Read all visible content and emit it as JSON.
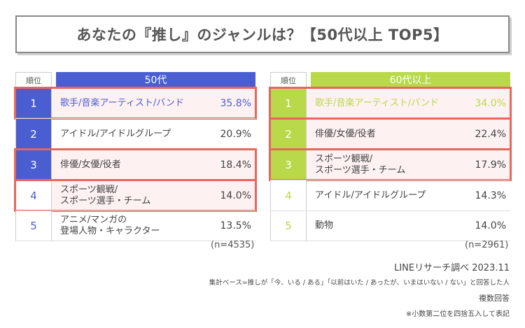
{
  "title": "あなたの『推し』のジャンルは？【50代以上 TOP5】",
  "rank_header": "順位",
  "colors": {
    "age50_accent": "#4a5ed1",
    "age50_rank_fill": "#e8ebfa",
    "age60_accent": "#b9d94a",
    "age60_rank_fill": "#f1f7dd",
    "highlight_border": "#e8665e"
  },
  "chart_data": [
    {
      "type": "table",
      "title": "50代",
      "categories": [
        "歌手/音楽アーティスト/バンド",
        "アイドル/アイドルグループ",
        "俳優/女優/役者",
        "スポーツ観戦/\nスポーツ選手・チーム",
        "アニメ/マンガの\n登場人物・キャラクター"
      ],
      "ranks": [
        "1",
        "2",
        "3",
        "4",
        "5"
      ],
      "values": [
        35.8,
        20.9,
        18.4,
        14.0,
        13.5
      ],
      "value_labels": [
        "35.8%",
        "20.9%",
        "18.4%",
        "14.0%",
        "13.5%"
      ],
      "rank_style": [
        "filled",
        "filled",
        "filled",
        "outline",
        "outline"
      ],
      "highlighted": [
        true,
        false,
        true,
        true,
        false
      ],
      "n_note": "(n=4535)"
    },
    {
      "type": "table",
      "title": "60代以上",
      "categories": [
        "歌手/音楽アーティスト/バンド",
        "俳優/女優/役者",
        "スポーツ観戦/\nスポーツ選手・チーム",
        "アイドル/アイドルグループ",
        "動物"
      ],
      "ranks": [
        "1",
        "2",
        "3",
        "4",
        "5"
      ],
      "values": [
        34.0,
        22.4,
        17.9,
        14.3,
        14.0
      ],
      "value_labels": [
        "34.0%",
        "22.4%",
        "17.9%",
        "14.3%",
        "14.0%"
      ],
      "rank_style": [
        "filled",
        "filled",
        "filled",
        "outline",
        "outline"
      ],
      "highlighted": [
        true,
        true,
        true,
        false,
        false
      ],
      "n_note": "(n=2961)"
    }
  ],
  "footer": {
    "source": "LINEリサーチ調べ 2023.11",
    "base": "集計ベース=推しが「今、いる / ある」「以前はいた / あったが、いまはいない / ない」と回答した人",
    "multi": "複数回答",
    "rounding": "※小数第二位を四捨五入して表記"
  }
}
